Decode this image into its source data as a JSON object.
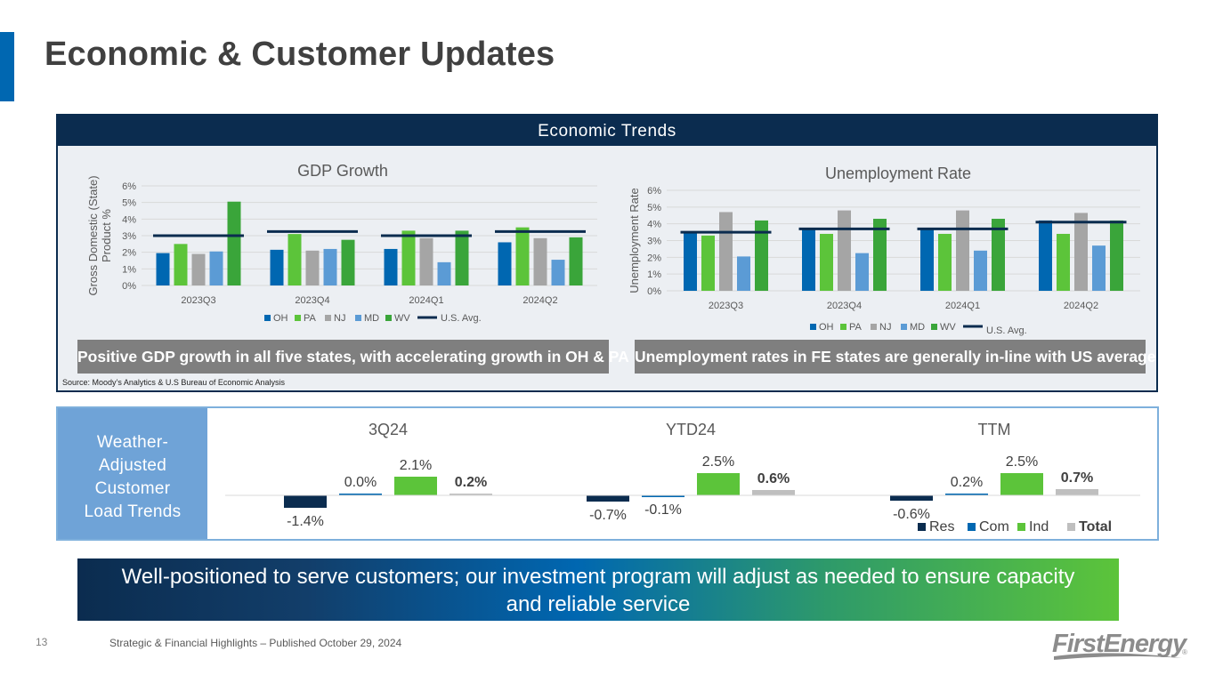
{
  "slide": {
    "title": "Economic & Customer Updates",
    "page_number": "13",
    "footer": "Strategic & Financial Highlights – Published October 29, 2024"
  },
  "economic_trends": {
    "header": "Economic Trends",
    "gdp_callout": "Positive GDP growth in all five states, with accelerating growth in OH & PA",
    "unemployment_callout": "Unemployment rates in FE states are generally in-line with US average",
    "source": "Source: Moody’s Analytics & U.S Bureau of Economic Analysis"
  },
  "weather": {
    "label_lines": [
      "Weather-",
      "Adjusted",
      "Customer",
      "Load Trends"
    ]
  },
  "banner": {
    "line1": "Well-positioned to serve customers; our investment program will adjust as needed to ensure capacity",
    "line2": "and reliable service"
  },
  "logo": {
    "text": "FirstEnergy",
    "mark": "®"
  },
  "colors": {
    "OH": "#0067b1",
    "PA": "#5cc43a",
    "NJ": "#a5a5a5",
    "MD": "#5b9bd5",
    "WV": "#3aa53a",
    "US": "#0b2c4f",
    "Res": "#0b2c4f",
    "Com": "#0067b1",
    "Ind": "#5cc43a",
    "Total": "#bfbfbf"
  },
  "chart_data": [
    {
      "type": "bar",
      "title": "GDP Growth",
      "ylabel": "Gross Domestic (State) Product  %",
      "xlabel": "",
      "ylim": [
        0,
        6
      ],
      "yticks": [
        "0%",
        "1%",
        "2%",
        "3%",
        "4%",
        "5%",
        "6%"
      ],
      "categories": [
        "2023Q3",
        "2023Q4",
        "2024Q1",
        "2024Q2"
      ],
      "series": [
        {
          "name": "OH",
          "values": [
            1.95,
            2.15,
            2.2,
            2.6
          ]
        },
        {
          "name": "PA",
          "values": [
            2.5,
            3.1,
            3.3,
            3.5
          ]
        },
        {
          "name": "NJ",
          "values": [
            1.9,
            2.1,
            2.85,
            2.85
          ]
        },
        {
          "name": "MD",
          "values": [
            2.05,
            2.2,
            1.4,
            1.55
          ]
        },
        {
          "name": "WV",
          "values": [
            5.05,
            2.75,
            3.3,
            2.9
          ]
        }
      ],
      "reference_line": {
        "name": "U.S. Avg.",
        "values": [
          3.0,
          3.25,
          3.0,
          3.25
        ]
      },
      "legend": "bottom"
    },
    {
      "type": "bar",
      "title": "Unemployment Rate",
      "ylabel": "Unemployment Rate",
      "xlabel": "",
      "ylim": [
        0,
        6
      ],
      "yticks": [
        "0%",
        "1%",
        "2%",
        "3%",
        "4%",
        "5%",
        "6%"
      ],
      "categories": [
        "2023Q3",
        "2023Q4",
        "2024Q1",
        "2024Q2"
      ],
      "series": [
        {
          "name": "OH",
          "values": [
            3.5,
            3.7,
            3.7,
            4.2
          ]
        },
        {
          "name": "PA",
          "values": [
            3.3,
            3.4,
            3.4,
            3.4
          ]
        },
        {
          "name": "NJ",
          "values": [
            4.7,
            4.8,
            4.8,
            4.65
          ]
        },
        {
          "name": "MD",
          "values": [
            2.05,
            2.25,
            2.4,
            2.7
          ]
        },
        {
          "name": "WV",
          "values": [
            4.2,
            4.3,
            4.3,
            4.2
          ]
        }
      ],
      "reference_line": {
        "name": "U.S. Avg.",
        "values": [
          3.5,
          3.7,
          3.7,
          4.1
        ]
      },
      "legend": "bottom"
    },
    {
      "type": "bar",
      "title": "Weather-Adjusted Customer Load Trends",
      "categories": [
        "3Q24",
        "YTD24",
        "TTM"
      ],
      "series": [
        {
          "name": "Res",
          "values": [
            -1.4,
            -0.7,
            -0.6
          ],
          "labels": [
            "-1.4%",
            "-0.7%",
            "-0.6%"
          ]
        },
        {
          "name": "Com",
          "values": [
            0.0,
            -0.1,
            0.2
          ],
          "labels": [
            "0.0%",
            "-0.1%",
            "0.2%"
          ]
        },
        {
          "name": "Ind",
          "values": [
            2.1,
            2.5,
            2.5
          ],
          "labels": [
            "2.1%",
            "2.5%",
            "2.5%"
          ]
        },
        {
          "name": "Total",
          "values": [
            0.2,
            0.6,
            0.7
          ],
          "labels": [
            "0.2%",
            "0.6%",
            "0.7%"
          ]
        }
      ],
      "legend": "bottom-right"
    }
  ]
}
